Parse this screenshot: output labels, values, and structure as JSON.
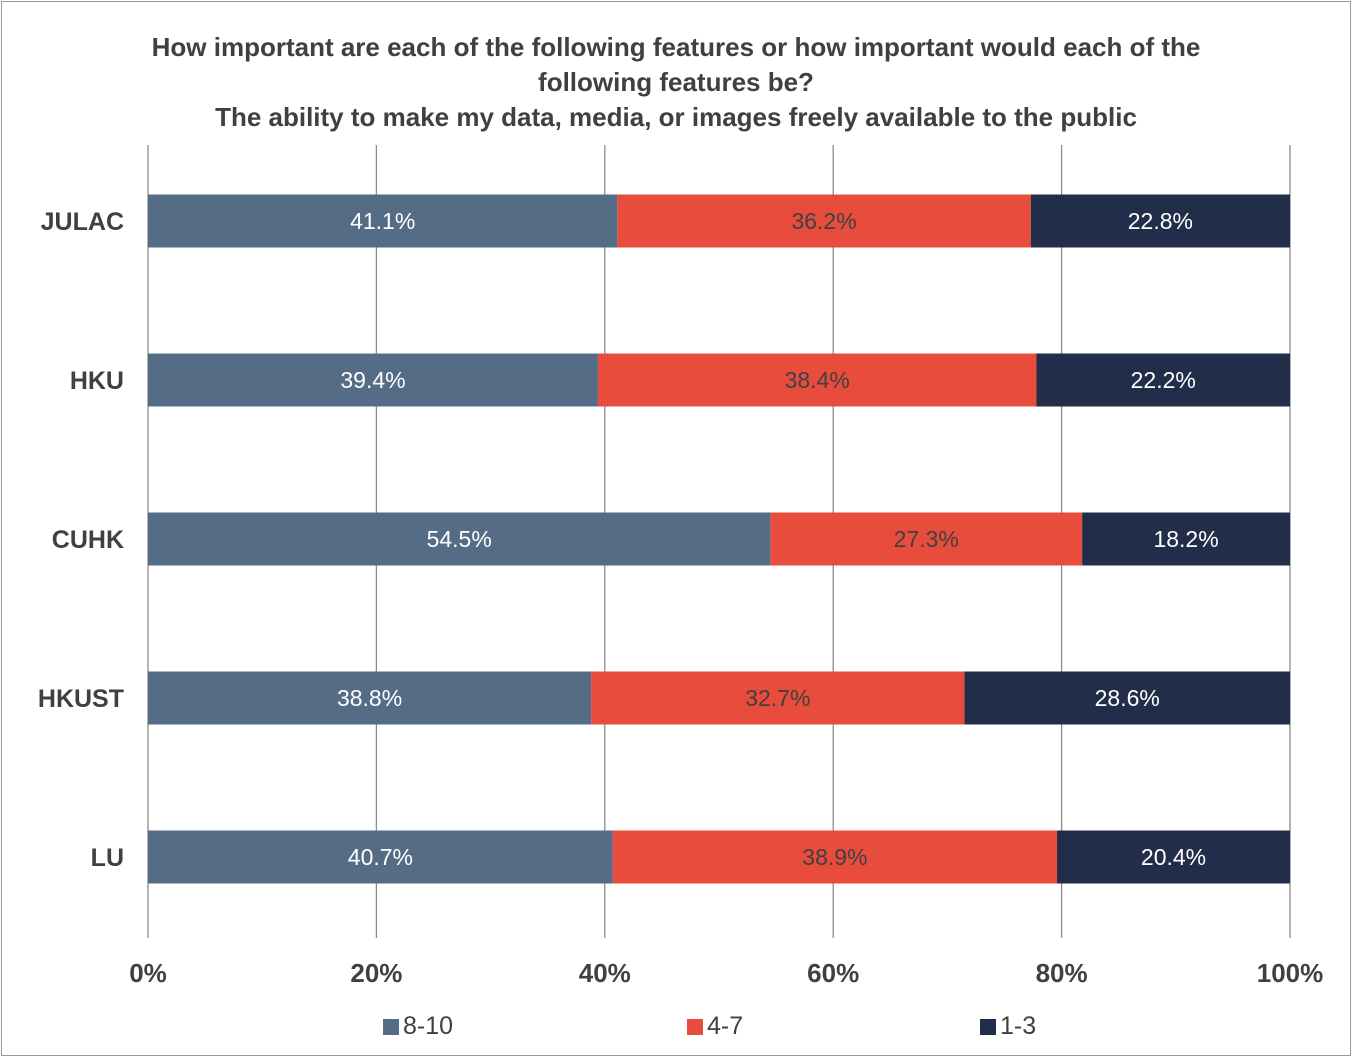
{
  "chart_data": {
    "type": "bar",
    "orientation": "horizontal",
    "stacked": true,
    "title_lines": [
      "How important are each of the following features or how important would each of the",
      "following features be?",
      "The ability to make my data, media, or images freely available to the public"
    ],
    "categories": [
      "JULAC",
      "HKU",
      "CUHK",
      "HKUST",
      "LU"
    ],
    "series": [
      {
        "name": "8-10",
        "color": "#546c86",
        "values": [
          41.1,
          39.4,
          54.5,
          38.8,
          40.7
        ],
        "labels": [
          "41.1%",
          "39.4%",
          "54.5%",
          "38.8%",
          "40.7%"
        ]
      },
      {
        "name": "4-7",
        "color": "#e84c3d",
        "values": [
          36.2,
          38.4,
          27.3,
          32.7,
          38.9
        ],
        "labels": [
          "36.2%",
          "38.4%",
          "27.3%",
          "32.7%",
          "38.9%"
        ]
      },
      {
        "name": "1-3",
        "color": "#222d4a",
        "values": [
          22.8,
          22.2,
          18.2,
          28.6,
          20.4
        ],
        "labels": [
          "22.8%",
          "22.2%",
          "18.2%",
          "28.6%",
          "20.4%"
        ]
      }
    ],
    "xlim": [
      0,
      100
    ],
    "x_ticks": [
      "0%",
      "20%",
      "40%",
      "60%",
      "80%",
      "100%"
    ],
    "grid": true,
    "legend_position": "bottom"
  }
}
